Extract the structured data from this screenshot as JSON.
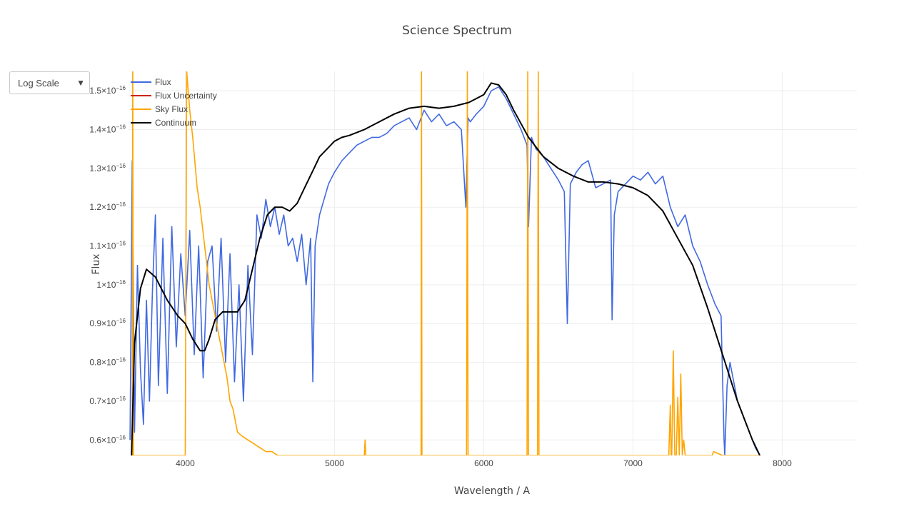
{
  "dropdown": {
    "label": "Log Scale",
    "arrow": "▼"
  },
  "chart_data": {
    "type": "line",
    "title": "Science Spectrum",
    "xlabel": "Wavelength / A",
    "ylabel": "Flux",
    "xlim": [
      3620,
      8500
    ],
    "ylim": [
      5.6e-17,
      1.55e-16
    ],
    "x_ticks": [
      {
        "value": 4000,
        "label": "4000"
      },
      {
        "value": 5000,
        "label": "5000"
      },
      {
        "value": 6000,
        "label": "6000"
      },
      {
        "value": 7000,
        "label": "7000"
      },
      {
        "value": 8000,
        "label": "8000"
      }
    ],
    "y_ticks": [
      {
        "value": 6e-17,
        "mantissa": "0.6×10",
        "exp": "−16"
      },
      {
        "value": 7e-17,
        "mantissa": "0.7×10",
        "exp": "−16"
      },
      {
        "value": 8e-17,
        "mantissa": "0.8×10",
        "exp": "−16"
      },
      {
        "value": 9e-17,
        "mantissa": "0.9×10",
        "exp": "−16"
      },
      {
        "value": 1e-16,
        "mantissa": "1×10",
        "exp": "−16"
      },
      {
        "value": 1.1e-16,
        "mantissa": "1.1×10",
        "exp": "−16"
      },
      {
        "value": 1.2e-16,
        "mantissa": "1.2×10",
        "exp": "−16"
      },
      {
        "value": 1.3e-16,
        "mantissa": "1.3×10",
        "exp": "−16"
      },
      {
        "value": 1.4e-16,
        "mantissa": "1.4×10",
        "exp": "−16"
      },
      {
        "value": 1.5e-16,
        "mantissa": "1.5×10",
        "exp": "−16"
      }
    ],
    "grid": true,
    "legend_position": "top-left",
    "series": [
      {
        "name": "Flux",
        "color": "#4169e1",
        "x": [
          3630,
          3645,
          3660,
          3680,
          3700,
          3720,
          3740,
          3760,
          3780,
          3800,
          3820,
          3850,
          3880,
          3910,
          3940,
          3970,
          4000,
          4030,
          4060,
          4090,
          4120,
          4150,
          4180,
          4210,
          4240,
          4270,
          4300,
          4330,
          4360,
          4390,
          4420,
          4450,
          4480,
          4510,
          4540,
          4570,
          4600,
          4630,
          4660,
          4690,
          4720,
          4750,
          4780,
          4810,
          4840,
          4855,
          4870,
          4900,
          4930,
          4960,
          5000,
          5050,
          5100,
          5150,
          5200,
          5250,
          5300,
          5350,
          5400,
          5450,
          5500,
          5550,
          5600,
          5650,
          5700,
          5750,
          5800,
          5850,
          5880,
          5895,
          5910,
          5950,
          6000,
          6050,
          6100,
          6150,
          6200,
          6250,
          6290,
          6300,
          6320,
          6350,
          6400,
          6450,
          6500,
          6540,
          6560,
          6580,
          6620,
          6660,
          6700,
          6750,
          6800,
          6850,
          6860,
          6875,
          6900,
          6950,
          7000,
          7050,
          7100,
          7150,
          7200,
          7250,
          7300,
          7350,
          7400,
          7450,
          7500,
          7550,
          7590,
          7610,
          7615,
          7630,
          7650,
          7680,
          7700,
          7730,
          7760,
          7790,
          7820,
          7850
        ],
        "y": [
          6e-17,
          1.32e-16,
          6.2e-17,
          1.05e-16,
          7.8e-17,
          6.4e-17,
          9.6e-17,
          7e-17,
          9.8e-17,
          1.18e-16,
          7.4e-17,
          1.12e-16,
          7.2e-17,
          1.15e-16,
          8.4e-17,
          1.08e-16,
          9.2e-17,
          1.14e-16,
          8.2e-17,
          1.1e-16,
          7.6e-17,
          1.06e-16,
          1.1e-16,
          8.8e-17,
          1.12e-16,
          8e-17,
          1.08e-16,
          7.5e-17,
          1e-16,
          7e-17,
          1.05e-16,
          8.2e-17,
          1.18e-16,
          1.12e-16,
          1.22e-16,
          1.15e-16,
          1.2e-16,
          1.13e-16,
          1.18e-16,
          1.1e-16,
          1.12e-16,
          1.06e-16,
          1.13e-16,
          1e-16,
          1.12e-16,
          7.5e-17,
          1.1e-16,
          1.18e-16,
          1.22e-16,
          1.26e-16,
          1.29e-16,
          1.32e-16,
          1.34e-16,
          1.36e-16,
          1.37e-16,
          1.38e-16,
          1.38e-16,
          1.39e-16,
          1.41e-16,
          1.42e-16,
          1.43e-16,
          1.4e-16,
          1.45e-16,
          1.42e-16,
          1.44e-16,
          1.41e-16,
          1.42e-16,
          1.4e-16,
          1.2e-16,
          1.43e-16,
          1.42e-16,
          1.44e-16,
          1.46e-16,
          1.5e-16,
          1.51e-16,
          1.48e-16,
          1.44e-16,
          1.4e-16,
          1.36e-16,
          1.15e-16,
          1.38e-16,
          1.35e-16,
          1.33e-16,
          1.3e-16,
          1.27e-16,
          1.24e-16,
          9e-17,
          1.26e-16,
          1.29e-16,
          1.31e-16,
          1.32e-16,
          1.25e-16,
          1.26e-16,
          1.27e-16,
          9.1e-17,
          1.18e-16,
          1.24e-16,
          1.26e-16,
          1.28e-16,
          1.27e-16,
          1.29e-16,
          1.26e-16,
          1.28e-16,
          1.2e-16,
          1.15e-16,
          1.18e-16,
          1.1e-16,
          1.06e-16,
          1e-16,
          9.5e-17,
          9.2e-17,
          6e-17,
          5.6e-17,
          7.4e-17,
          8e-17,
          7.4e-17,
          7e-17,
          6.7e-17,
          6.4e-17,
          6.1e-17,
          5.8e-17,
          5.6e-17
        ]
      },
      {
        "name": "Flux Uncertainty",
        "color": "#cc2200",
        "x": [],
        "y": []
      },
      {
        "name": "Sky Flux",
        "color": "#ffa500",
        "x": [
          3645,
          3648,
          3652,
          3660,
          3690,
          3720,
          3750,
          3800,
          3850,
          3900,
          3950,
          4000,
          4010,
          4030,
          4050,
          4080,
          4100,
          4130,
          4160,
          4200,
          4250,
          4280,
          4300,
          4320,
          4340,
          4350,
          4380,
          4420,
          4460,
          4500,
          4540,
          4580,
          4620,
          4660,
          4700,
          4800,
          5000,
          5200,
          5205,
          5210,
          5300,
          5500,
          5580,
          5583,
          5586,
          5600,
          5800,
          5885,
          5890,
          5895,
          5900,
          6000,
          6200,
          6290,
          6295,
          6300,
          6310,
          6350,
          6360,
          6365,
          6370,
          6400,
          6800,
          7200,
          7240,
          7250,
          7255,
          7260,
          7270,
          7280,
          7290,
          7300,
          7310,
          7320,
          7330,
          7340,
          7350,
          7360,
          7400,
          7500,
          7530,
          7540,
          7600,
          7700,
          7800,
          7850
        ],
        "y": [
          5.6e-17,
          1.55e-16,
          5.6e-17,
          5.6e-17,
          5.6e-17,
          5.6e-17,
          5.6e-17,
          5.6e-17,
          5.6e-17,
          5.6e-17,
          5.6e-17,
          5.6e-17,
          1.55e-16,
          1.45e-16,
          1.38e-16,
          1.25e-16,
          1.2e-16,
          1.1e-16,
          1e-16,
          9.2e-17,
          8.2e-17,
          7.6e-17,
          7e-17,
          6.8e-17,
          6.4e-17,
          6.2e-17,
          6.1e-17,
          6e-17,
          5.9e-17,
          5.8e-17,
          5.7e-17,
          5.7e-17,
          5.6e-17,
          5.6e-17,
          5.6e-17,
          5.6e-17,
          5.6e-17,
          5.6e-17,
          6e-17,
          5.6e-17,
          5.6e-17,
          5.6e-17,
          5.6e-17,
          1.55e-16,
          5.6e-17,
          5.6e-17,
          5.6e-17,
          5.6e-17,
          1.55e-16,
          5.6e-17,
          5.6e-17,
          5.6e-17,
          5.6e-17,
          5.6e-17,
          1.55e-16,
          5.6e-17,
          5.6e-17,
          5.6e-17,
          5.6e-17,
          1.55e-16,
          5.6e-17,
          5.6e-17,
          5.6e-17,
          5.6e-17,
          5.6e-17,
          6.9e-17,
          5.6e-17,
          5.6e-17,
          8.3e-17,
          5.6e-17,
          5.6e-17,
          7.1e-17,
          5.6e-17,
          7.7e-17,
          5.6e-17,
          6e-17,
          5.6e-17,
          5.6e-17,
          5.6e-17,
          5.6e-17,
          5.6e-17,
          5.7e-17,
          5.6e-17,
          5.6e-17,
          5.6e-17,
          5.6e-17
        ]
      },
      {
        "name": "Continuum",
        "color": "#000000",
        "x": [
          3640,
          3660,
          3700,
          3740,
          3800,
          3880,
          3950,
          4000,
          4050,
          4100,
          4130,
          4160,
          4200,
          4250,
          4300,
          4350,
          4400,
          4450,
          4500,
          4550,
          4600,
          4650,
          4700,
          4750,
          4800,
          4850,
          4900,
          4950,
          5000,
          5050,
          5100,
          5200,
          5300,
          5400,
          5500,
          5600,
          5700,
          5800,
          5900,
          6000,
          6050,
          6100,
          6150,
          6200,
          6300,
          6400,
          6500,
          6600,
          6700,
          6800,
          6900,
          7000,
          7100,
          7200,
          7300,
          7400,
          7500,
          7600,
          7700,
          7800,
          7850
        ],
        "y": [
          5.6e-17,
          8.5e-17,
          9.9e-17,
          1.04e-16,
          1.02e-16,
          9.6e-17,
          9.2e-17,
          9e-17,
          8.6e-17,
          8.3e-17,
          8.3e-17,
          8.6e-17,
          9.1e-17,
          9.3e-17,
          9.3e-17,
          9.3e-17,
          9.6e-17,
          1.04e-16,
          1.12e-16,
          1.18e-16,
          1.2e-16,
          1.2e-16,
          1.19e-16,
          1.21e-16,
          1.25e-16,
          1.29e-16,
          1.33e-16,
          1.35e-16,
          1.37e-16,
          1.38e-16,
          1.385e-16,
          1.4e-16,
          1.42e-16,
          1.44e-16,
          1.455e-16,
          1.46e-16,
          1.455e-16,
          1.46e-16,
          1.47e-16,
          1.49e-16,
          1.52e-16,
          1.515e-16,
          1.49e-16,
          1.45e-16,
          1.38e-16,
          1.33e-16,
          1.3e-16,
          1.28e-16,
          1.265e-16,
          1.265e-16,
          1.26e-16,
          1.25e-16,
          1.23e-16,
          1.19e-16,
          1.12e-16,
          1.05e-16,
          9.4e-17,
          8.2e-17,
          7e-17,
          6e-17,
          5.6e-17
        ]
      }
    ]
  }
}
